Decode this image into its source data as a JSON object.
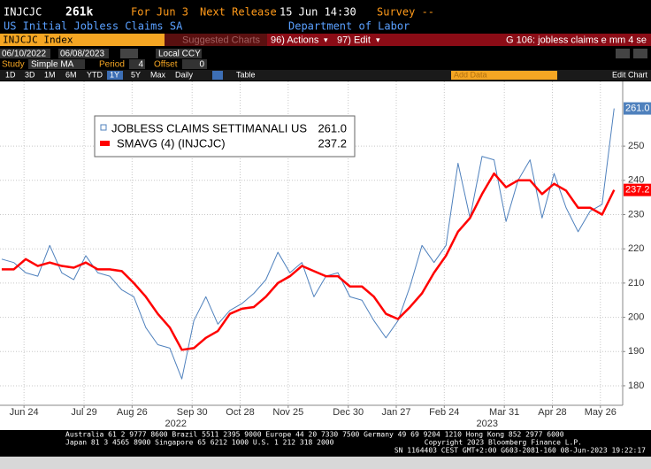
{
  "header": {
    "ticker": "INJCJC",
    "value": "261k",
    "for_date": "For Jun 3",
    "next_label": "Next Release",
    "next_date": "15 Jun 14:30",
    "survey": "Survey --",
    "name": "US Initial Jobless Claims SA",
    "source": "Department of Labor"
  },
  "toolbar": {
    "security": "INJCJC Index",
    "suggested": "Suggested Charts",
    "actions": "96) Actions",
    "edit": "97) Edit",
    "page": "G 106: jobless claims e mm 4 se",
    "start": "06/10/2022",
    "end": "06/08/2023",
    "currency": "Local CCY",
    "study_label": "Study",
    "study": "Simple MA",
    "period_label": "Period",
    "period": "4",
    "offset_label": "Offset",
    "offset": "0",
    "ranges": [
      "1D",
      "3D",
      "1M",
      "6M",
      "YTD",
      "1Y",
      "5Y",
      "Max"
    ],
    "frequency": "Daily",
    "table": "Table",
    "add_data": "Add Data",
    "edit_chart": "Edit Chart"
  },
  "chart_data": {
    "type": "line",
    "x": [
      "2022-06-11",
      "2022-06-18",
      "2022-06-25",
      "2022-07-02",
      "2022-07-09",
      "2022-07-16",
      "2022-07-23",
      "2022-07-30",
      "2022-08-06",
      "2022-08-13",
      "2022-08-20",
      "2022-08-27",
      "2022-09-03",
      "2022-09-10",
      "2022-09-17",
      "2022-09-24",
      "2022-10-01",
      "2022-10-08",
      "2022-10-15",
      "2022-10-22",
      "2022-10-29",
      "2022-11-05",
      "2022-11-12",
      "2022-11-19",
      "2022-11-26",
      "2022-12-03",
      "2022-12-10",
      "2022-12-17",
      "2022-12-24",
      "2022-12-31",
      "2023-01-07",
      "2023-01-14",
      "2023-01-21",
      "2023-01-28",
      "2023-02-04",
      "2023-02-11",
      "2023-02-18",
      "2023-02-25",
      "2023-03-04",
      "2023-03-11",
      "2023-03-18",
      "2023-03-25",
      "2023-04-01",
      "2023-04-08",
      "2023-04-15",
      "2023-04-22",
      "2023-04-29",
      "2023-05-06",
      "2023-05-13",
      "2023-05-20",
      "2023-05-27",
      "2023-06-03"
    ],
    "series": [
      {
        "name": "JOBLESS CLAIMS SETTIMANALI US",
        "color": "#4f81bd",
        "legend_value": "261.0",
        "values": [
          217,
          216,
          213,
          212,
          221,
          213,
          211,
          218,
          213,
          212,
          208,
          206,
          197,
          192,
          191,
          182,
          199,
          206,
          198,
          202,
          204,
          207,
          211,
          219,
          213,
          216,
          206,
          212,
          213,
          206,
          205,
          199,
          194,
          199,
          209,
          221,
          216,
          221,
          245,
          229,
          247,
          246,
          228,
          240,
          246,
          229,
          242,
          232,
          225,
          231,
          233,
          261
        ]
      },
      {
        "name": "SMAVG (4) (INJCJC)",
        "color": "#ff0000",
        "legend_value": "237.2",
        "values": [
          214,
          214,
          217,
          215,
          216,
          215,
          214.5,
          216,
          214,
          214,
          213.5,
          210,
          206,
          201,
          197,
          190.5,
          191,
          194,
          196,
          201,
          202.5,
          203,
          206,
          210,
          212,
          215,
          213.5,
          212,
          212,
          209,
          209,
          206,
          201,
          199.5,
          203,
          207,
          213,
          218,
          225,
          229,
          236,
          242,
          238,
          240,
          240,
          236,
          239,
          237,
          232,
          232,
          230,
          237.2
        ]
      }
    ],
    "xlim": [
      "2022-06-10",
      "2023-06-08"
    ],
    "xticks": [
      {
        "value": "2022-06-24",
        "label": "Jun 24"
      },
      {
        "value": "2022-07-29",
        "label": "Jul 29"
      },
      {
        "value": "2022-08-26",
        "label": "Aug 26"
      },
      {
        "value": "2022-09-30",
        "label": "Sep 30"
      },
      {
        "value": "2022-10-28",
        "label": "Oct 28"
      },
      {
        "value": "2022-11-25",
        "label": "Nov 25"
      },
      {
        "value": "2022-12-30",
        "label": "Dec 30"
      },
      {
        "value": "2023-01-27",
        "label": "Jan 27"
      },
      {
        "value": "2023-02-24",
        "label": "Feb 24"
      },
      {
        "value": "2023-03-31",
        "label": "Mar 31"
      },
      {
        "value": "2023-04-28",
        "label": "Apr 28"
      },
      {
        "value": "2023-05-26",
        "label": "May 26"
      }
    ],
    "years": [
      "2022",
      "2023"
    ],
    "ylim": [
      174.3,
      268.9
    ],
    "yticks": [
      180,
      190,
      200,
      210,
      220,
      230,
      240,
      250
    ],
    "grid": true
  },
  "footer": {
    "line1": "Australia 61 2 9777 8600 Brazil 5511 2395 9000 Europe 44 20 7330 7500 Germany 49 69 9204 1210 Hong Kong 852 2977 6000",
    "line2": "Japan 81 3 4565 8900       Singapore 65 6212 1000       U.S. 1 212 318 2000",
    "copyright": "Copyright 2023 Bloomberg Finance L.P.",
    "line3": "SN 1164403 CEST  GMT+2:00 G603-2081-160 08-Jun-2023 19:22:17"
  }
}
